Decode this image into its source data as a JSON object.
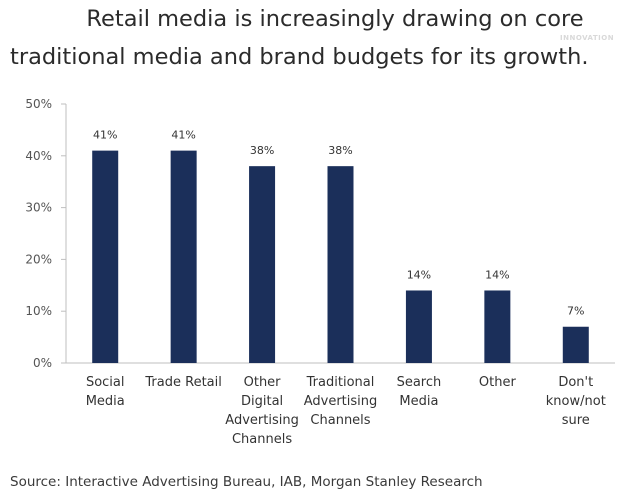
{
  "header": {
    "title_line1": "Retail media is increasingly drawing on core",
    "title_line2": "traditional media and brand budgets for its growth.",
    "badge": "INNOVATION"
  },
  "footer": {
    "source": "Source: Interactive Advertising Bureau, IAB, Morgan Stanley Research"
  },
  "colors": {
    "bar": "#1b2f5a",
    "axis": "#bfbfbf",
    "tick_text": "#555555"
  },
  "chart_data": {
    "type": "bar",
    "title": "Retail media is increasingly drawing on core traditional media and brand budgets for its growth.",
    "xlabel": "",
    "ylabel": "",
    "ylim": [
      0,
      50
    ],
    "yticks": [
      0,
      10,
      20,
      30,
      40,
      50
    ],
    "ytick_labels": [
      "0%",
      "10%",
      "20%",
      "30%",
      "40%",
      "50%"
    ],
    "grid": false,
    "categories": [
      [
        "Social",
        "Media"
      ],
      [
        "Trade Retail"
      ],
      [
        "Other",
        "Digital",
        "Advertising",
        "Channels"
      ],
      [
        "Traditional",
        "Advertising",
        "Channels"
      ],
      [
        "Search",
        "Media"
      ],
      [
        "Other"
      ],
      [
        "Don't",
        "know/not",
        "sure"
      ]
    ],
    "values": [
      41,
      41,
      38,
      38,
      14,
      14,
      7
    ],
    "value_labels": [
      "41%",
      "41%",
      "38%",
      "38%",
      "14%",
      "14%",
      "7%"
    ]
  }
}
